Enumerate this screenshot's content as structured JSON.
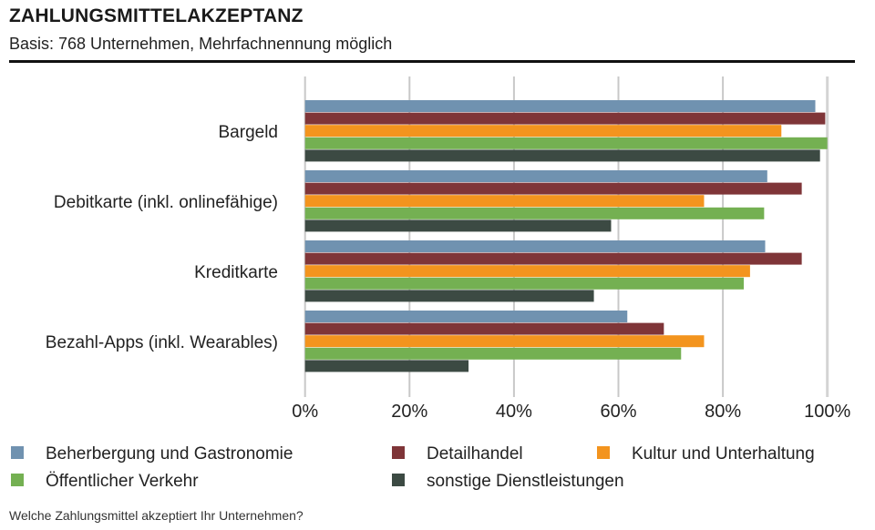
{
  "chart_data": {
    "type": "bar",
    "orientation": "horizontal",
    "title": "ZAHLUNGSMITTELAKZEPTANZ",
    "subtitle": "Basis: 768 Unternehmen, Mehrfachnennung möglich",
    "footer": "Welche Zahlungsmittel akzeptiert Ihr Unternehmen?",
    "categories": [
      "Bargeld",
      "Debitkarte (inkl. onlinefähige)",
      "Kreditkarte",
      "Bezahl-Apps (inkl. Wearables)"
    ],
    "xlim": [
      0,
      100
    ],
    "ticks": [
      "0%",
      "20%",
      "40%",
      "60%",
      "80%",
      "100%"
    ],
    "tick_values": [
      0,
      20,
      40,
      60,
      80,
      100
    ],
    "grid": true,
    "legend_placement": "bottom",
    "series": [
      {
        "name": "Beherbergung und Gastronomie",
        "color": "#7092b0",
        "values": [
          97.7,
          88.5,
          88.1,
          61.7
        ]
      },
      {
        "name": "Detailhandel",
        "color": "#7f3538",
        "values": [
          99.6,
          95.1,
          95.1,
          68.7
        ]
      },
      {
        "name": "Kultur und Unterhaltung",
        "color": "#f3941e",
        "values": [
          91.2,
          76.4,
          85.2,
          76.4
        ]
      },
      {
        "name": "Öffentlicher Verkehr",
        "color": "#74b052",
        "values": [
          100,
          87.9,
          84.0,
          72.0
        ]
      },
      {
        "name": "sonstige Dienstleistungen",
        "color": "#3c4a43",
        "values": [
          98.6,
          58.6,
          55.3,
          31.3
        ]
      }
    ]
  }
}
